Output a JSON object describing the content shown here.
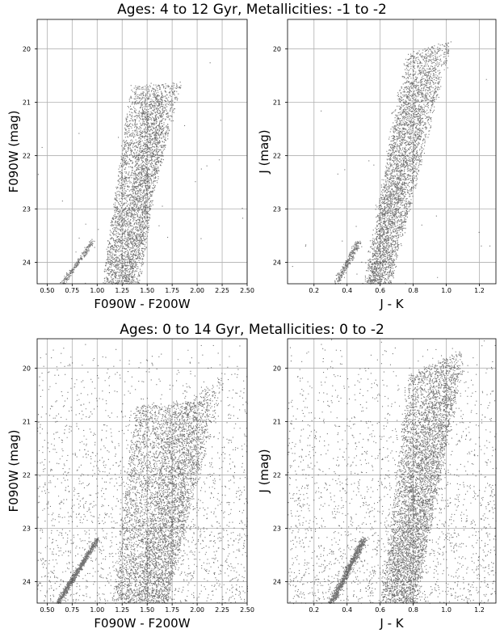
{
  "rows": [
    {
      "title": "Ages: 4 to 12 Gyr, Metallicities: -1 to -2"
    },
    {
      "title": "Ages: 0 to 14 Gyr, Metallicities: 0 to -2"
    }
  ],
  "chart_data": [
    {
      "type": "scatter",
      "xlabel": "F090W - F200W",
      "ylabel": "F090W (mag)",
      "xlim": [
        0.4,
        2.5
      ],
      "ylim": [
        24.4,
        19.45
      ],
      "y_inverted": true,
      "xticks": [
        0.5,
        0.75,
        1.0,
        1.25,
        1.5,
        1.75,
        2.0,
        2.25,
        2.5
      ],
      "xtick_labels": [
        "0.50",
        "0.75",
        "1.00",
        "1.25",
        "1.50",
        "1.75",
        "2.00",
        "2.25",
        "2.50"
      ],
      "yticks": [
        20,
        21,
        22,
        23,
        24
      ],
      "ytick_labels": [
        "20",
        "21",
        "22",
        "23",
        "24"
      ],
      "grid": true,
      "marker_color": "#000000",
      "bands": [
        {
          "top": [
            1.33,
            20.7
          ],
          "tip": [
            1.84,
            20.62
          ],
          "bottom": [
            1.05,
            24.4
          ],
          "width": 0.3,
          "density": 3000
        },
        {
          "top": [
            1.45,
            20.9
          ],
          "tip": [
            1.7,
            20.85
          ],
          "bottom": [
            1.25,
            24.4
          ],
          "width": 0.18,
          "density": 1000
        }
      ],
      "spur": {
        "from": [
          0.95,
          23.6
        ],
        "to": [
          0.65,
          24.4
        ],
        "density": 220
      },
      "field_density": 30
    },
    {
      "type": "scatter",
      "xlabel": "J - K",
      "ylabel": "J (mag)",
      "xlim": [
        0.04,
        1.3
      ],
      "ylim": [
        24.4,
        19.45
      ],
      "y_inverted": true,
      "xticks": [
        0.2,
        0.4,
        0.6,
        0.8,
        1.0,
        1.2
      ],
      "xtick_labels": [
        "0.2",
        "0.4",
        "0.6",
        "0.8",
        "1.0",
        "1.2"
      ],
      "yticks": [
        20,
        21,
        22,
        23,
        24
      ],
      "ytick_labels": [
        "20",
        "21",
        "22",
        "23",
        "24"
      ],
      "grid": true,
      "marker_color": "#000000",
      "bands": [
        {
          "top": [
            0.76,
            20.1
          ],
          "tip": [
            1.03,
            19.85
          ],
          "bottom": [
            0.52,
            24.4
          ],
          "width": 0.14,
          "density": 3000
        },
        {
          "top": [
            0.7,
            20.8
          ],
          "tip": [
            0.95,
            20.3
          ],
          "bottom": [
            0.5,
            24.4
          ],
          "width": 0.09,
          "density": 1000
        }
      ],
      "spur": {
        "from": [
          0.47,
          23.6
        ],
        "to": [
          0.33,
          24.4
        ],
        "density": 260
      },
      "field_density": 30
    },
    {
      "type": "scatter",
      "xlabel": "F090W - F200W",
      "ylabel": "F090W (mag)",
      "xlim": [
        0.4,
        2.5
      ],
      "ylim": [
        24.4,
        19.45
      ],
      "y_inverted": true,
      "xticks": [
        0.5,
        0.75,
        1.0,
        1.25,
        1.5,
        1.75,
        2.0,
        2.25,
        2.5
      ],
      "xtick_labels": [
        "0.50",
        "0.75",
        "1.00",
        "1.25",
        "1.50",
        "1.75",
        "2.00",
        "2.25",
        "2.50"
      ],
      "yticks": [
        20,
        21,
        22,
        23,
        24
      ],
      "ytick_labels": [
        "20",
        "21",
        "22",
        "23",
        "24"
      ],
      "grid": true,
      "marker_color": "#000000",
      "bands": [
        {
          "top": [
            1.38,
            20.7
          ],
          "tip": [
            2.15,
            20.6
          ],
          "bottom": [
            1.15,
            24.4
          ],
          "width": 0.55,
          "density": 3600
        },
        {
          "top": [
            1.7,
            21.0
          ],
          "tip": [
            2.3,
            20.0
          ],
          "bottom": [
            1.4,
            24.4
          ],
          "width": 0.3,
          "density": 1200
        }
      ],
      "spur": {
        "from": [
          1.0,
          23.2
        ],
        "to": [
          0.6,
          24.4
        ],
        "density": 900
      },
      "field_density": 2200
    },
    {
      "type": "scatter",
      "xlabel": "J - K",
      "ylabel": "J (mag)",
      "xlim": [
        0.04,
        1.3
      ],
      "ylim": [
        24.4,
        19.45
      ],
      "y_inverted": true,
      "xticks": [
        0.2,
        0.4,
        0.6,
        0.8,
        1.0,
        1.2
      ],
      "xtick_labels": [
        "0.2",
        "0.4",
        "0.6",
        "0.8",
        "1.0",
        "1.2"
      ],
      "yticks": [
        20,
        21,
        22,
        23,
        24
      ],
      "ytick_labels": [
        "20",
        "21",
        "22",
        "23",
        "24"
      ],
      "grid": true,
      "marker_color": "#000000",
      "bands": [
        {
          "top": [
            0.78,
            20.1
          ],
          "tip": [
            1.1,
            19.65
          ],
          "bottom": [
            0.6,
            24.4
          ],
          "width": 0.22,
          "density": 3600
        },
        {
          "top": [
            0.85,
            20.6
          ],
          "tip": [
            1.1,
            20.0
          ],
          "bottom": [
            0.65,
            24.4
          ],
          "width": 0.15,
          "density": 1200
        }
      ],
      "spur": {
        "from": [
          0.5,
          23.2
        ],
        "to": [
          0.3,
          24.4
        ],
        "density": 900
      },
      "field_density": 2200
    }
  ]
}
